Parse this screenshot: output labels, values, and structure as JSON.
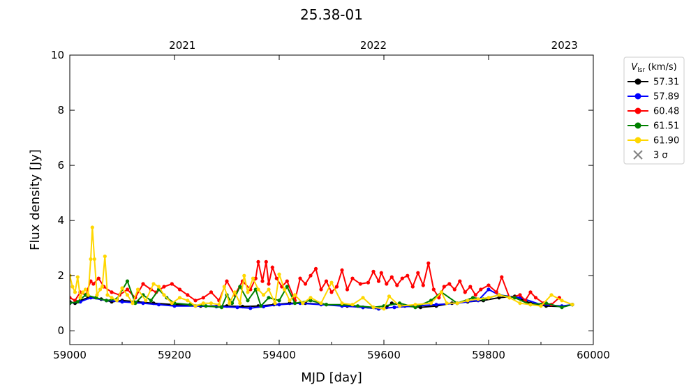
{
  "chart_data": {
    "type": "line",
    "title": "25.38-01",
    "xlabel": "MJD [day]",
    "ylabel": "Flux density [Jy]",
    "xlim": [
      59000,
      60000
    ],
    "ylim": [
      -0.5,
      10
    ],
    "xticks": [
      59000,
      59200,
      59400,
      59600,
      59800,
      60000
    ],
    "xtick_labels": [
      "59000",
      "59200",
      "59400",
      "59600",
      "59800",
      "60000"
    ],
    "yticks": [
      0,
      2,
      4,
      6,
      8,
      10
    ],
    "ytick_labels": [
      "0",
      "2",
      "4",
      "6",
      "8",
      "10"
    ],
    "top_axis": {
      "ticks": [
        59215,
        59580,
        59945
      ],
      "labels": [
        "2021",
        "2022",
        "2023"
      ]
    },
    "grid": false,
    "legend": {
      "placement": "outside-right",
      "title_main": "V",
      "title_sub": "lsr",
      "title_unit": " (km/s)",
      "sigma_label": "3 σ",
      "sigma_color": "#808080"
    },
    "series": [
      {
        "name": "57.31",
        "color": "#000000",
        "x": [
          59000,
          59010,
          59020,
          59035,
          59060,
          59080,
          59100,
          59130,
          59160,
          59200,
          59250,
          59300,
          59330,
          59360,
          59390,
          59420,
          59450,
          59490,
          59530,
          59560,
          59590,
          59605,
          59615,
          59640,
          59670,
          59700,
          59730,
          59760,
          59790,
          59820,
          59850,
          59880,
          59910,
          59940,
          59960
        ],
        "y": [
          1.05,
          1.0,
          1.1,
          1.2,
          1.15,
          1.05,
          1.1,
          1.05,
          1.0,
          0.95,
          0.9,
          0.9,
          0.88,
          0.9,
          0.95,
          1.0,
          1.0,
          0.95,
          0.9,
          0.85,
          0.8,
          0.85,
          1.0,
          0.9,
          0.85,
          0.9,
          1.0,
          1.05,
          1.1,
          1.2,
          1.25,
          1.0,
          0.9,
          0.88,
          0.95
        ]
      },
      {
        "name": "57.89",
        "color": "#0000ff",
        "x": [
          59000,
          59020,
          59040,
          59070,
          59100,
          59140,
          59170,
          59200,
          59240,
          59280,
          59320,
          59345,
          59370,
          59400,
          59440,
          59480,
          59520,
          59560,
          59590,
          59620,
          59660,
          59700,
          59740,
          59780,
          59800,
          59820,
          59860,
          59900,
          59940,
          59960
        ],
        "y": [
          1.0,
          1.05,
          1.2,
          1.1,
          1.05,
          1.0,
          0.95,
          0.9,
          0.9,
          0.88,
          0.85,
          0.82,
          0.88,
          0.95,
          1.0,
          0.95,
          0.9,
          0.85,
          0.8,
          0.85,
          0.9,
          0.95,
          1.0,
          1.1,
          1.5,
          1.3,
          1.2,
          0.95,
          0.9,
          0.95
        ]
      },
      {
        "name": "60.48",
        "color": "#ff0000",
        "x": [
          59000,
          59010,
          59020,
          59030,
          59040,
          59045,
          59055,
          59065,
          59080,
          59095,
          59110,
          59125,
          59140,
          59155,
          59165,
          59180,
          59195,
          59210,
          59225,
          59240,
          59255,
          59270,
          59285,
          59300,
          59315,
          59330,
          59345,
          59355,
          59360,
          59368,
          59375,
          59380,
          59387,
          59395,
          59405,
          59415,
          59430,
          59440,
          59450,
          59460,
          59470,
          59480,
          59490,
          59500,
          59510,
          59520,
          59530,
          59540,
          59555,
          59570,
          59580,
          59590,
          59595,
          59605,
          59615,
          59625,
          59635,
          59645,
          59655,
          59665,
          59675,
          59685,
          59695,
          59705,
          59715,
          59725,
          59735,
          59745,
          59755,
          59765,
          59775,
          59785,
          59800,
          59815,
          59825,
          59840,
          59860,
          59870,
          59880,
          59890,
          59905,
          59920,
          59935
        ],
        "y": [
          1.2,
          1.1,
          1.4,
          1.3,
          1.8,
          1.7,
          1.9,
          1.6,
          1.4,
          1.3,
          1.5,
          1.2,
          1.7,
          1.5,
          1.4,
          1.6,
          1.7,
          1.5,
          1.3,
          1.1,
          1.2,
          1.4,
          1.1,
          1.8,
          1.3,
          1.8,
          1.5,
          1.9,
          2.5,
          1.8,
          2.5,
          1.7,
          2.3,
          1.9,
          1.6,
          1.8,
          1.1,
          1.9,
          1.7,
          2.0,
          2.25,
          1.5,
          1.8,
          1.4,
          1.6,
          2.2,
          1.5,
          1.9,
          1.7,
          1.75,
          2.15,
          1.8,
          2.1,
          1.7,
          1.95,
          1.65,
          1.9,
          2.0,
          1.6,
          2.1,
          1.65,
          2.45,
          1.5,
          1.2,
          1.6,
          1.7,
          1.5,
          1.8,
          1.4,
          1.6,
          1.3,
          1.5,
          1.65,
          1.4,
          1.95,
          1.2,
          1.3,
          1.1,
          1.4,
          1.2,
          1.0,
          0.95,
          1.2
        ]
      },
      {
        "name": "61.51",
        "color": "#008000",
        "x": [
          59000,
          59015,
          59030,
          59050,
          59070,
          59090,
          59110,
          59125,
          59140,
          59155,
          59170,
          59185,
          59200,
          59230,
          59260,
          59290,
          59300,
          59310,
          59325,
          59340,
          59355,
          59365,
          59380,
          59400,
          59415,
          59430,
          59460,
          59490,
          59520,
          59550,
          59580,
          59600,
          59630,
          59660,
          59690,
          59710,
          59740,
          59770,
          59790,
          59820,
          59850,
          59880,
          59910,
          59940,
          59960
        ],
        "y": [
          1.0,
          1.05,
          1.3,
          1.2,
          1.1,
          1.15,
          1.8,
          1.0,
          1.3,
          1.1,
          1.5,
          1.2,
          1.0,
          0.95,
          0.9,
          0.85,
          1.3,
          1.0,
          1.6,
          1.1,
          1.5,
          0.9,
          1.2,
          1.1,
          1.6,
          1.0,
          1.1,
          0.95,
          0.95,
          0.9,
          0.85,
          0.9,
          1.0,
          0.85,
          1.1,
          1.4,
          1.0,
          1.2,
          1.15,
          1.3,
          1.2,
          0.95,
          1.0,
          0.85,
          0.95
        ]
      },
      {
        "name": "61.90",
        "color": "#ffd700",
        "x": [
          59000,
          59005,
          59010,
          59015,
          59020,
          59025,
          59030,
          59035,
          59040,
          59043,
          59047,
          59052,
          59058,
          59062,
          59067,
          59072,
          59080,
          59090,
          59100,
          59110,
          59120,
          59130,
          59145,
          59160,
          59170,
          59180,
          59195,
          59210,
          59225,
          59240,
          59255,
          59270,
          59285,
          59295,
          59305,
          59315,
          59325,
          59333,
          59340,
          59350,
          59360,
          59370,
          59380,
          59392,
          59400,
          59410,
          59420,
          59430,
          59445,
          59460,
          59480,
          59500,
          59520,
          59540,
          59560,
          59580,
          59600,
          59610,
          59630,
          59660,
          59690,
          59710,
          59720,
          59740,
          59760,
          59780,
          59800,
          59820,
          59840,
          59860,
          59880,
          59900,
          59920,
          59940,
          59960
        ],
        "y": [
          2.0,
          1.6,
          1.4,
          1.95,
          1.2,
          1.4,
          1.5,
          1.3,
          2.6,
          3.75,
          2.6,
          1.3,
          1.5,
          1.6,
          2.7,
          1.3,
          1.2,
          1.1,
          1.55,
          1.3,
          1.0,
          1.5,
          1.1,
          1.7,
          1.6,
          1.3,
          1.0,
          1.2,
          1.1,
          0.9,
          1.0,
          1.0,
          0.95,
          1.6,
          1.0,
          1.4,
          1.0,
          2.0,
          1.4,
          1.9,
          1.5,
          1.3,
          1.5,
          1.0,
          2.05,
          1.5,
          1.1,
          1.3,
          1.0,
          1.2,
          1.0,
          1.75,
          1.0,
          0.95,
          1.2,
          0.85,
          0.8,
          1.25,
          0.9,
          0.95,
          1.0,
          1.4,
          1.0,
          1.0,
          1.1,
          1.15,
          1.2,
          1.3,
          1.2,
          1.0,
          0.95,
          0.9,
          1.3,
          1.1,
          0.95
        ]
      }
    ]
  }
}
